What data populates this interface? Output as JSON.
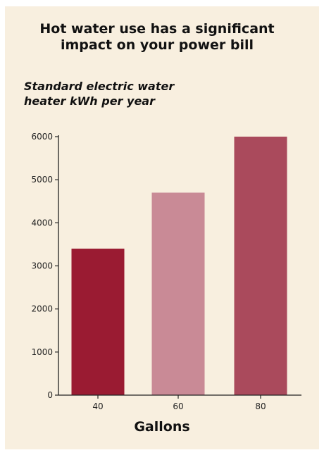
{
  "chart_data": {
    "type": "bar",
    "title": "Hot water use has a significant impact on your power bill",
    "title_lines": [
      "Hot water use has a significant",
      "impact on your power bill"
    ],
    "subtitle": "Standard electric water heater kWh per year",
    "subtitle_lines": [
      "Standard electric water",
      "heater kWh per year"
    ],
    "xlabel": "Gallons",
    "ylabel": "",
    "categories": [
      "40",
      "60",
      "80"
    ],
    "values": [
      3400,
      4700,
      6000
    ],
    "ylim": [
      0,
      6000
    ],
    "yticks": [
      0,
      1000,
      2000,
      3000,
      4000,
      5000,
      6000
    ],
    "grid": false,
    "colors": {
      "background": "#f8efdf",
      "bars": [
        "#9a1b32",
        "#c98a96",
        "#aa4a5c"
      ],
      "axis": "#222222"
    }
  }
}
